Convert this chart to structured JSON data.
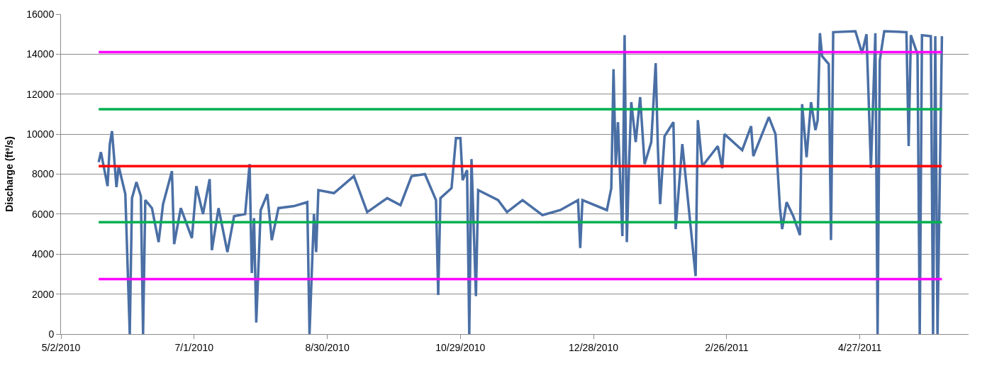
{
  "chart_data": {
    "type": "line",
    "ylabel": "Discharge (ft³/s)",
    "xlim": [
      "2010-05-02",
      "2011-06-15"
    ],
    "xticks": [
      {
        "value": "2010-05-02",
        "label": "5/2/2010"
      },
      {
        "value": "2010-07-01",
        "label": "7/1/2010"
      },
      {
        "value": "2010-08-30",
        "label": "8/30/2010"
      },
      {
        "value": "2010-10-29",
        "label": "10/29/2010"
      },
      {
        "value": "2010-12-28",
        "label": "12/28/2010"
      },
      {
        "value": "2011-02-26",
        "label": "2/26/2011"
      },
      {
        "value": "2011-04-27",
        "label": "4/27/2011"
      }
    ],
    "ylim": [
      0,
      16000
    ],
    "yticks": [
      0,
      2000,
      4000,
      6000,
      8000,
      10000,
      12000,
      14000,
      16000
    ],
    "grid": "y",
    "marker": "none",
    "line_style": "solid",
    "series": [
      {
        "color": "#4a6fa5",
        "x": [
          "2010-05-19",
          "2010-05-20",
          "2010-05-23",
          "2010-05-24",
          "2010-05-25",
          "2010-05-27",
          "2010-05-28",
          "2010-05-31",
          "2010-06-02",
          "2010-06-03",
          "2010-06-05",
          "2010-06-07",
          "2010-06-08",
          "2010-06-09",
          "2010-06-12",
          "2010-06-15",
          "2010-06-17",
          "2010-06-21",
          "2010-06-22",
          "2010-06-25",
          "2010-06-30",
          "2010-07-02",
          "2010-07-05",
          "2010-07-08",
          "2010-07-09",
          "2010-07-12",
          "2010-07-16",
          "2010-07-19",
          "2010-07-24",
          "2010-07-26",
          "2010-07-27",
          "2010-07-28",
          "2010-07-29",
          "2010-07-31",
          "2010-08-03",
          "2010-08-05",
          "2010-08-08",
          "2010-08-15",
          "2010-08-21",
          "2010-08-22",
          "2010-08-24",
          "2010-08-25",
          "2010-08-26",
          "2010-09-02",
          "2010-09-11",
          "2010-09-17",
          "2010-09-26",
          "2010-10-02",
          "2010-10-07",
          "2010-10-13",
          "2010-10-18",
          "2010-10-19",
          "2010-10-20",
          "2010-10-25",
          "2010-10-27",
          "2010-10-29",
          "2010-10-30",
          "2010-11-01",
          "2010-11-02",
          "2010-11-03",
          "2010-11-05",
          "2010-11-06",
          "2010-11-15",
          "2010-11-19",
          "2010-11-26",
          "2010-12-05",
          "2010-12-13",
          "2010-12-21",
          "2010-12-22",
          "2010-12-23",
          "2011-01-03",
          "2011-01-05",
          "2011-01-06",
          "2011-01-07",
          "2011-01-08",
          "2011-01-10",
          "2011-01-11",
          "2011-01-12",
          "2011-01-13",
          "2011-01-14",
          "2011-01-16",
          "2011-01-18",
          "2011-01-20",
          "2011-01-23",
          "2011-01-25",
          "2011-01-26",
          "2011-01-27",
          "2011-01-29",
          "2011-02-02",
          "2011-02-03",
          "2011-02-06",
          "2011-02-12",
          "2011-02-13",
          "2011-02-15",
          "2011-02-22",
          "2011-02-24",
          "2011-02-25",
          "2011-03-05",
          "2011-03-09",
          "2011-03-10",
          "2011-03-17",
          "2011-03-20",
          "2011-03-22",
          "2011-03-23",
          "2011-03-25",
          "2011-03-28",
          "2011-03-31",
          "2011-04-01",
          "2011-04-03",
          "2011-04-05",
          "2011-04-07",
          "2011-04-08",
          "2011-04-09",
          "2011-04-10",
          "2011-04-13",
          "2011-04-14",
          "2011-04-15",
          "2011-04-25",
          "2011-04-28",
          "2011-04-30",
          "2011-05-02",
          "2011-05-04",
          "2011-05-05",
          "2011-05-06",
          "2011-05-08",
          "2011-05-18",
          "2011-05-19",
          "2011-05-20",
          "2011-05-23",
          "2011-05-24",
          "2011-05-25",
          "2011-05-29",
          "2011-05-30",
          "2011-05-31",
          "2011-06-01",
          "2011-06-03"
        ],
        "values": [
          8600,
          9100,
          7400,
          9500,
          10150,
          7350,
          8400,
          7000,
          0,
          6800,
          7600,
          6900,
          0,
          6700,
          6300,
          4600,
          6500,
          8150,
          4500,
          6300,
          4800,
          7400,
          6000,
          7750,
          4200,
          6300,
          4100,
          5900,
          6000,
          8500,
          3050,
          5800,
          580,
          6200,
          7000,
          4700,
          6300,
          6400,
          6600,
          0,
          6000,
          4100,
          7200,
          7050,
          7900,
          6100,
          6800,
          6450,
          7900,
          8000,
          6700,
          1950,
          6800,
          7300,
          9800,
          9800,
          7700,
          8200,
          0,
          8750,
          1900,
          7200,
          6700,
          6100,
          6700,
          5950,
          6200,
          6700,
          4300,
          6700,
          6200,
          7300,
          13250,
          8400,
          10600,
          4900,
          14950,
          4600,
          8500,
          11600,
          9600,
          11850,
          8500,
          9600,
          13550,
          9300,
          6500,
          9900,
          10600,
          5250,
          9500,
          2900,
          10700,
          8400,
          9400,
          8300,
          10000,
          9200,
          10400,
          8900,
          10850,
          10000,
          6300,
          5250,
          6600,
          5900,
          4950,
          11500,
          8850,
          11600,
          10200,
          10700,
          15050,
          13900,
          13500,
          4700,
          15100,
          15150,
          14050,
          15000,
          8300,
          15050,
          0,
          13700,
          15150,
          15100,
          9400,
          14950,
          14000,
          0,
          14950,
          14900,
          0,
          14900,
          0,
          14900
        ]
      },
      {
        "color": "#ff00ff",
        "x": [
          "2010-05-19",
          "2011-06-03"
        ],
        "values": [
          14100,
          14100
        ]
      },
      {
        "color": "#00b050",
        "x": [
          "2010-05-19",
          "2011-06-03"
        ],
        "values": [
          11250,
          11250
        ]
      },
      {
        "color": "#ff0000",
        "x": [
          "2010-05-19",
          "2011-06-03"
        ],
        "values": [
          8400,
          8400
        ]
      },
      {
        "color": "#00b050",
        "x": [
          "2010-05-19",
          "2011-06-03"
        ],
        "values": [
          5600,
          5600
        ]
      },
      {
        "color": "#ff00ff",
        "x": [
          "2010-05-19",
          "2011-06-03"
        ],
        "values": [
          2750,
          2750
        ]
      }
    ]
  }
}
